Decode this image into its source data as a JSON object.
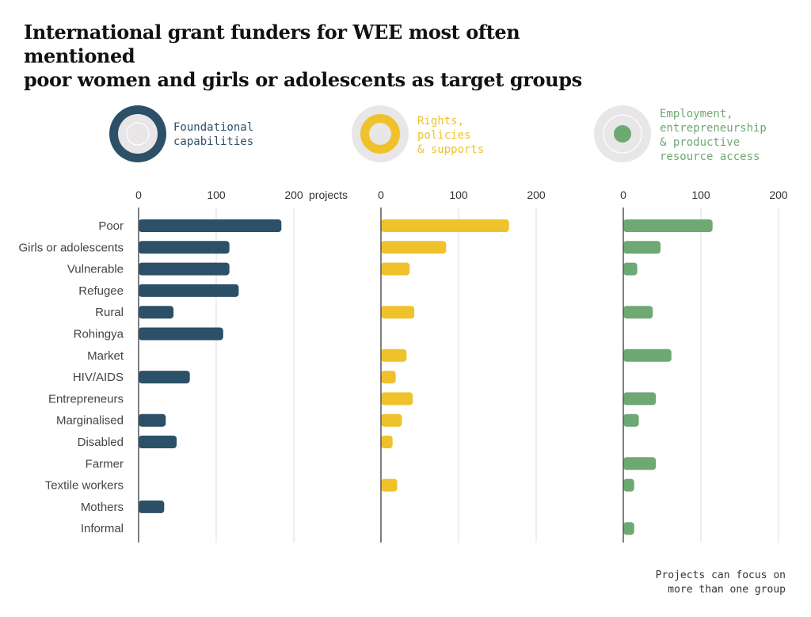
{
  "title_lines": [
    "International grant funders for WEE most often mentioned",
    "poor women and girls or adolescents as target groups"
  ],
  "note_lines": [
    "Projects can focus on",
    "more than one group"
  ],
  "unit_label": "projects",
  "chart_data": {
    "type": "bar",
    "orientation": "horizontal",
    "categories": [
      "Poor",
      "Girls or adolescents",
      "Vulnerable",
      "Refugee",
      "Rural",
      "Rohingya",
      "Market",
      "HIV/AIDS",
      "Entrepreneurs",
      "Marginalised",
      "Disabled",
      "Farmer",
      "Textile workers",
      "Mothers",
      "Informal"
    ],
    "xlim": [
      0,
      200
    ],
    "xticks": [
      0,
      100,
      200
    ],
    "grid": true,
    "panels": [
      {
        "name_lines": [
          "Foundational",
          "capabilities"
        ],
        "color": "#2b5068",
        "legend_icon": "ring-icon",
        "values": [
          184,
          117,
          117,
          129,
          45,
          109,
          null,
          66,
          null,
          35,
          49,
          null,
          null,
          33,
          null
        ]
      },
      {
        "name_lines": [
          "Rights,",
          "policies",
          "& supports"
        ],
        "color": "#efc22c",
        "legend_icon": "ring-icon",
        "values": [
          165,
          84,
          37,
          null,
          43,
          null,
          33,
          19,
          41,
          27,
          15,
          null,
          21,
          null,
          null
        ]
      },
      {
        "name_lines": [
          "Employment,",
          "entrepreneurship",
          "& productive",
          "resource access"
        ],
        "color": "#6ea873",
        "legend_icon": "dot-icon",
        "values": [
          115,
          48,
          18,
          null,
          38,
          null,
          62,
          null,
          42,
          20,
          null,
          42,
          14,
          null,
          14
        ]
      }
    ]
  }
}
